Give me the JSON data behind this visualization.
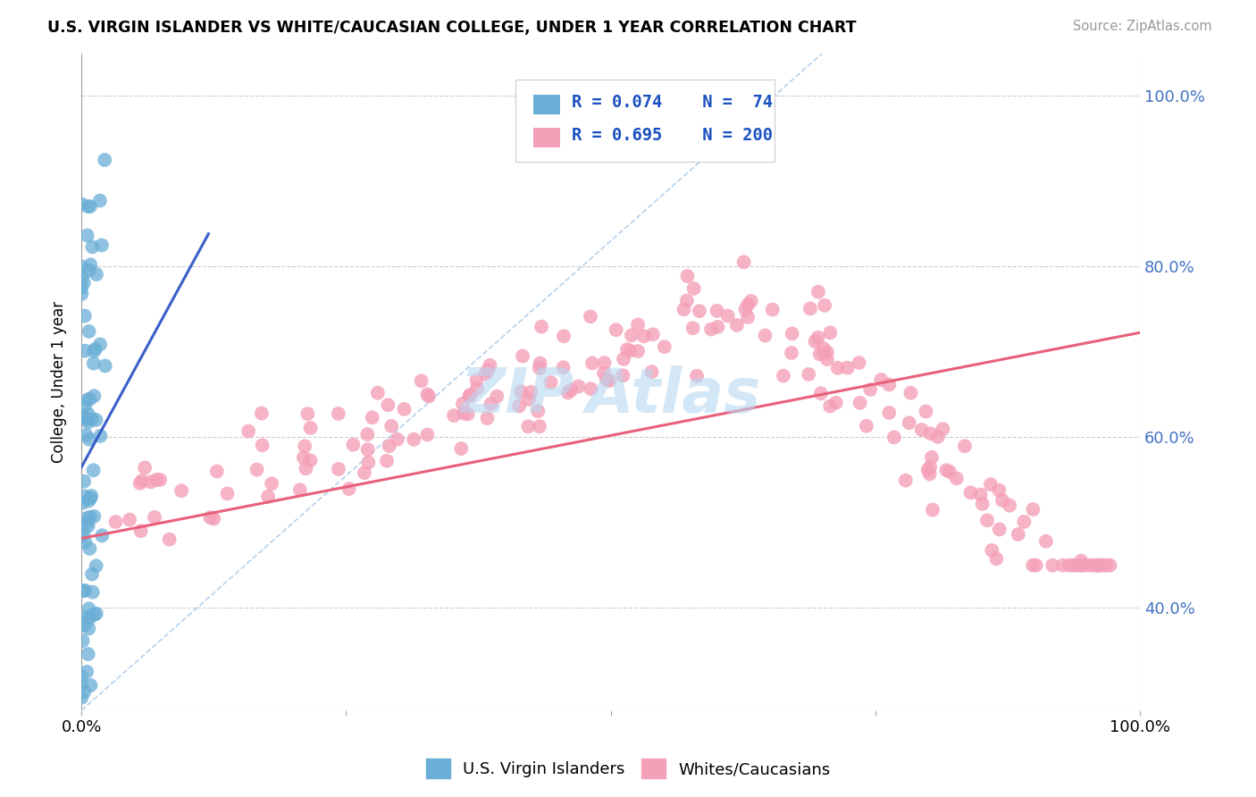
{
  "title": "U.S. VIRGIN ISLANDER VS WHITE/CAUCASIAN COLLEGE, UNDER 1 YEAR CORRELATION CHART",
  "source_text": "Source: ZipAtlas.com",
  "ylabel": "College, Under 1 year",
  "xlim": [
    0.0,
    1.0
  ],
  "ylim": [
    0.28,
    1.05
  ],
  "x_tick_labels": [
    "0.0%",
    "100.0%"
  ],
  "y_tick_labels": [
    "40.0%",
    "60.0%",
    "80.0%",
    "100.0%"
  ],
  "y_ticks": [
    0.4,
    0.6,
    0.8,
    1.0
  ],
  "color_blue": "#6aaed6",
  "color_pink": "#f4a0b8",
  "color_blue_line": "#3a5fc8",
  "color_pink_line": "#e8607a",
  "color_dashed": "#a8c8e8",
  "watermark": "ZIPAtlas",
  "background_color": "#ffffff",
  "grid_color": "#cccccc",
  "r1": 0.074,
  "r2": 0.695,
  "n1": 74,
  "n2": 200
}
